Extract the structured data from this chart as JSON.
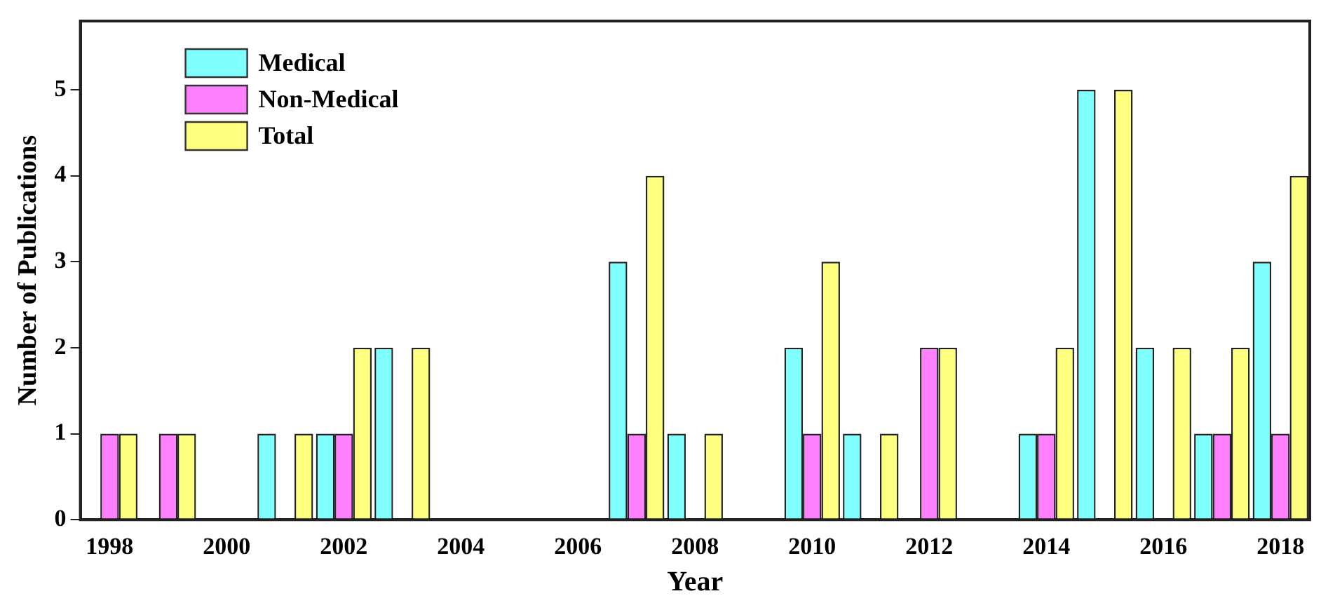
{
  "chart_data": {
    "type": "bar",
    "xlabel": "Year",
    "ylabel": "Number of Publications",
    "categories": [
      "1998",
      null,
      "2000",
      null,
      "2002",
      null,
      "2004",
      null,
      "2006",
      null,
      "2008",
      null,
      "2010",
      null,
      "2012",
      null,
      "2014",
      null,
      "2016",
      null,
      "2018"
    ],
    "series": [
      {
        "name": "Medical",
        "color": "#80ffff",
        "values": [
          0,
          0,
          0,
          1,
          1,
          2,
          0,
          0,
          0,
          3,
          1,
          0,
          2,
          1,
          0,
          0,
          1,
          5,
          2,
          1,
          3
        ]
      },
      {
        "name": "Non-Medical",
        "color": "#ff80ff",
        "values": [
          1,
          1,
          0,
          0,
          1,
          0,
          0,
          0,
          0,
          1,
          0,
          0,
          1,
          0,
          2,
          0,
          1,
          0,
          0,
          1,
          1
        ]
      },
      {
        "name": "Total",
        "color": "#ffff80",
        "values": [
          1,
          1,
          0,
          1,
          2,
          2,
          0,
          0,
          0,
          4,
          1,
          0,
          3,
          1,
          2,
          0,
          2,
          5,
          2,
          2,
          4
        ]
      }
    ],
    "ylim": [
      0,
      5.8
    ],
    "yticks": [
      0,
      1,
      2,
      3,
      4,
      5
    ],
    "grid": false,
    "legend": "top left"
  }
}
